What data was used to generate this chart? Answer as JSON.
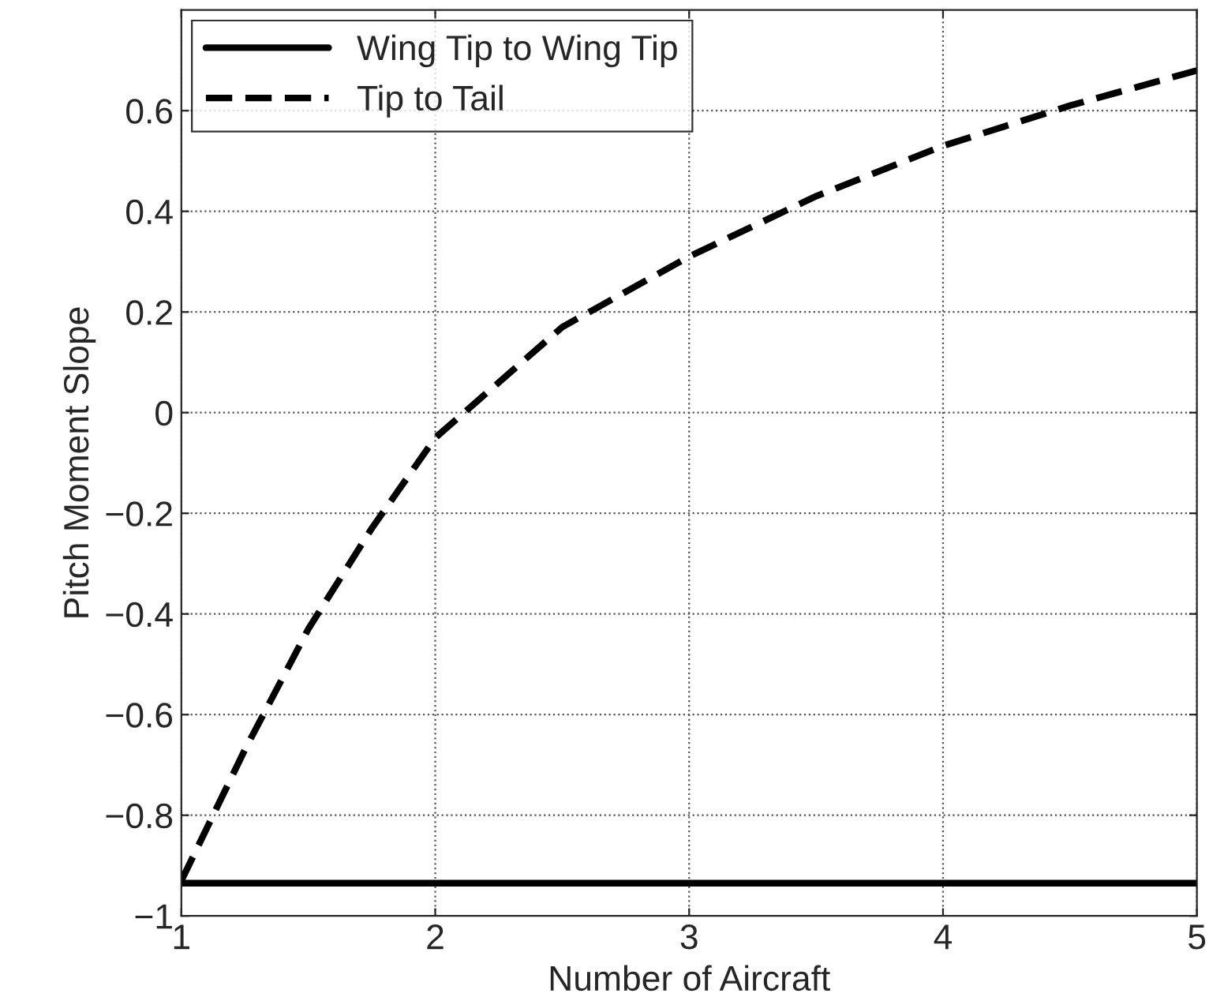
{
  "chart_data": {
    "type": "line",
    "xlabel": "Number of Aircraft",
    "ylabel": "Pitch Moment Slope",
    "series": [
      {
        "name": "Wing Tip to Wing Tip",
        "color": "#000000",
        "line_style": "solid",
        "x": [
          1,
          5
        ],
        "values": [
          -0.935,
          -0.935
        ]
      },
      {
        "name": "Tip to Tail",
        "color": "#000000",
        "line_style": "dashed",
        "x": [
          1,
          1.25,
          1.5,
          1.75,
          2,
          2.5,
          3,
          3.5,
          4,
          4.5,
          5
        ],
        "values": [
          -0.93,
          -0.67,
          -0.43,
          -0.23,
          -0.05,
          0.17,
          0.31,
          0.43,
          0.53,
          0.61,
          0.68
        ]
      }
    ],
    "xlim": [
      1,
      5
    ],
    "xticks": [
      1,
      2,
      3,
      4,
      5
    ],
    "ylim": [
      -1,
      0.8
    ],
    "yticks": [
      {
        "value": -1,
        "label": "−1"
      },
      {
        "value": -0.8,
        "label": "−0.8"
      },
      {
        "value": -0.6,
        "label": "−0.6"
      },
      {
        "value": -0.4,
        "label": "−0.4"
      },
      {
        "value": -0.2,
        "label": "−0.2"
      },
      0,
      0.2,
      0.4,
      0.6
    ],
    "grid": true,
    "legend": "top left"
  }
}
